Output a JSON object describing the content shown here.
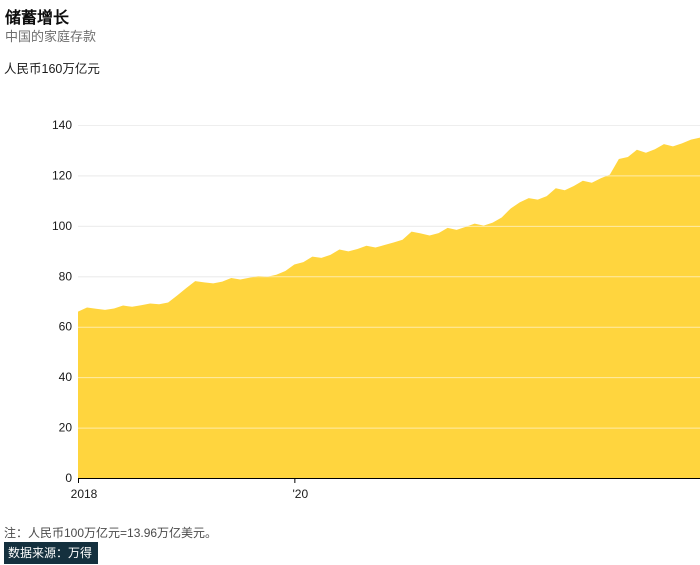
{
  "header": {
    "title": "储蓄增长",
    "subtitle": "中国的家庭存款",
    "unit_label": "人民币160万亿元"
  },
  "footer": {
    "note": "注：人民币100万亿元=13.96万亿美元。",
    "source": "数据来源：万得"
  },
  "colors": {
    "area": "#ffd53e",
    "grid_under": "#d9d9d9",
    "grid_over": "rgba(255,255,255,0.55)",
    "axis": "#000000",
    "tick_label": "#1a1a1a",
    "source_bg": "#14303e",
    "source_text": "#ffffff"
  },
  "chart_data": {
    "type": "area",
    "title": "储蓄增长",
    "subtitle": "中国的家庭存款",
    "ylabel": "人民币160万亿元",
    "x_start_month": "2018-01",
    "x_end_month": "2023-10",
    "x_frequency": "monthly",
    "values": [
      66.0,
      67.6,
      67.1,
      66.7,
      67.2,
      68.4,
      67.9,
      68.5,
      69.2,
      68.9,
      69.6,
      72.4,
      75.3,
      78.1,
      77.6,
      77.2,
      77.9,
      79.3,
      78.7,
      79.4,
      80.1,
      79.8,
      80.6,
      82.1,
      84.7,
      85.6,
      87.8,
      87.3,
      88.5,
      90.6,
      89.9,
      90.8,
      92.1,
      91.4,
      92.4,
      93.4,
      94.5,
      97.7,
      97.0,
      96.2,
      97.1,
      99.2,
      98.4,
      99.6,
      100.9,
      100.1,
      101.3,
      103.3,
      106.9,
      109.3,
      111.0,
      110.4,
      111.8,
      114.9,
      114.1,
      115.8,
      117.9,
      117.1,
      118.9,
      120.3,
      126.5,
      127.3,
      130.2,
      129.0,
      130.4,
      132.4,
      131.5,
      132.7,
      134.2,
      135.0
    ],
    "ylim": [
      0,
      160
    ],
    "yticks": [
      0,
      20,
      40,
      60,
      80,
      100,
      120,
      140
    ],
    "xticks": [
      {
        "label": "2018",
        "month_index": 0
      },
      {
        "label": "'20",
        "month_index": 24
      }
    ],
    "grid": "horizontal",
    "legend": "none"
  }
}
